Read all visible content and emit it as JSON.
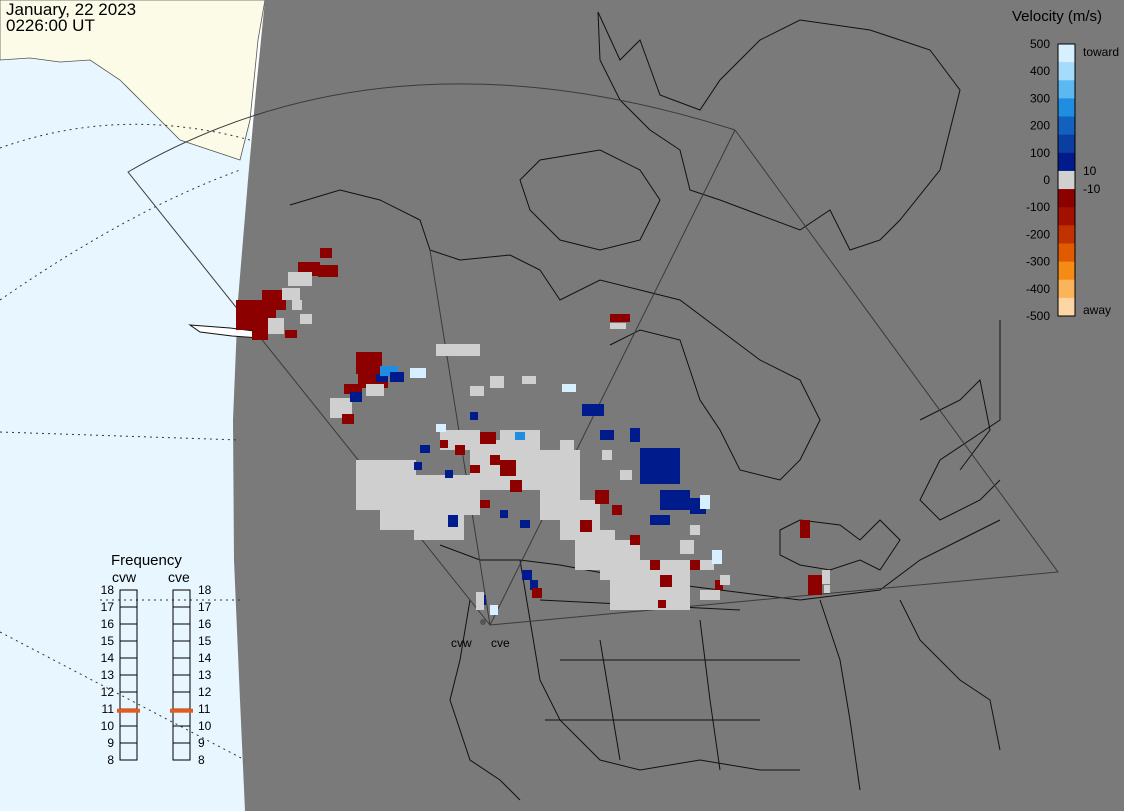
{
  "header": {
    "date": "January, 22 2023",
    "time": "0226:00 UT"
  },
  "colorbar": {
    "title": "Velocity (m/s)",
    "ticks": [
      "500",
      "400",
      "300",
      "200",
      "100",
      "0",
      "-100",
      "-200",
      "-300",
      "-400",
      "-500"
    ],
    "toward_label": "toward",
    "away_label": "away",
    "pos_threshold": "10",
    "neg_threshold": "-10",
    "colors": [
      "#d8efff",
      "#a6dcfb",
      "#5cb8f0",
      "#1f8ee0",
      "#1260c0",
      "#0a3fa0",
      "#001c8c",
      "#d0d0d0",
      "#8c0000",
      "#a31000",
      "#c23200",
      "#e05a00",
      "#f58a14",
      "#fcb45a",
      "#fdd6a6"
    ]
  },
  "frequency": {
    "title": "Frequency",
    "radars": [
      {
        "name": "cvw",
        "value_mhz": 10.9
      },
      {
        "name": "cve",
        "value_mhz": 10.9
      }
    ],
    "scale": [
      "18",
      "17",
      "16",
      "15",
      "14",
      "13",
      "12",
      "11",
      "10",
      "9",
      "8"
    ],
    "marker_color": "#e65a1e"
  },
  "map": {
    "radar_labels": [
      "cvw",
      "cve"
    ],
    "colors": {
      "land": "#7a7a7a",
      "ocean": "#e8f6ff",
      "ice": "#fbfbe8",
      "ground_scatter": "#cfcfcf"
    }
  }
}
